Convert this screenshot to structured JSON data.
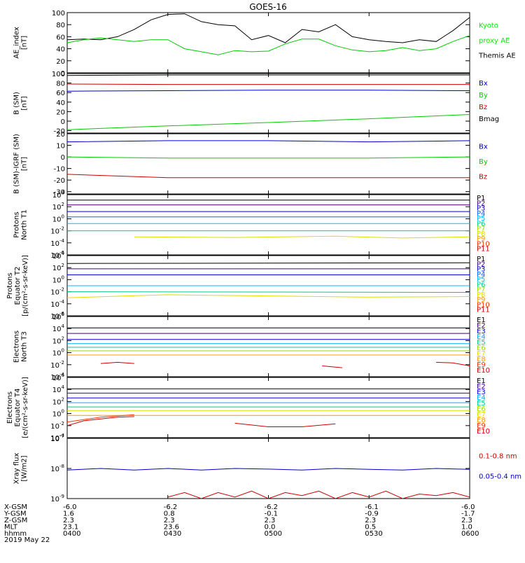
{
  "title": "GOES-16",
  "date": "2019 May 22",
  "chart_data": [
    {
      "type": "line",
      "panel": "ae",
      "ylabel": [
        "AE_index",
        "[nT]"
      ],
      "yticks": [
        "0",
        "20",
        "40",
        "60",
        "80",
        "100"
      ],
      "yrange": [
        0,
        100
      ],
      "legend": [
        {
          "text": "Kyoto",
          "color": "#00ee00"
        },
        {
          "text": "proxy AE",
          "color": "#00ee00"
        },
        {
          "text": "Themis AE",
          "color": "#000000"
        }
      ],
      "series": [
        {
          "color": "#000000",
          "x": [
            0,
            5,
            10,
            15,
            20,
            25,
            30,
            35,
            40,
            45,
            50,
            55,
            60,
            65,
            70,
            75,
            80,
            85,
            90,
            95,
            100,
            105,
            110,
            115,
            120
          ],
          "values": [
            55,
            56,
            55,
            60,
            72,
            88,
            97,
            98,
            85,
            80,
            78,
            55,
            62,
            50,
            72,
            68,
            80,
            60,
            55,
            52,
            50,
            55,
            52,
            70,
            92
          ]
        },
        {
          "color": "#00cc00",
          "x": [
            0,
            5,
            10,
            15,
            20,
            25,
            30,
            35,
            40,
            45,
            50,
            55,
            60,
            65,
            70,
            75,
            80,
            85,
            90,
            95,
            100,
            105,
            110,
            115,
            120
          ],
          "values": [
            50,
            55,
            58,
            55,
            52,
            55,
            55,
            40,
            35,
            30,
            37,
            35,
            36,
            48,
            56,
            56,
            45,
            38,
            35,
            37,
            42,
            37,
            40,
            52,
            62
          ]
        }
      ]
    },
    {
      "type": "line",
      "panel": "bsm",
      "ylabel": [
        "B (SM)",
        "[nT]"
      ],
      "yticks": [
        "-20",
        "0",
        "20",
        "40",
        "60",
        "80",
        "100"
      ],
      "yrange": [
        -25,
        100
      ],
      "legend": [
        {
          "text": "Bx",
          "color": "#0000cc"
        },
        {
          "text": "By",
          "color": "#00cc00"
        },
        {
          "text": "Bz",
          "color": "#cc0000"
        },
        {
          "text": "Bmag",
          "color": "#000000"
        }
      ],
      "series": [
        {
          "color": "#000000",
          "x": [
            0,
            30,
            60,
            90,
            120
          ],
          "values": [
            96,
            97,
            97,
            97,
            97
          ]
        },
        {
          "color": "#cc0000",
          "x": [
            0,
            30,
            60,
            90,
            120
          ],
          "values": [
            78,
            77,
            77,
            77,
            77
          ]
        },
        {
          "color": "#0000cc",
          "x": [
            0,
            30,
            60,
            90,
            120
          ],
          "values": [
            63,
            64,
            65,
            65,
            64
          ]
        },
        {
          "color": "#00cc00",
          "x": [
            0,
            30,
            60,
            90,
            120
          ],
          "values": [
            -18,
            -10,
            -3,
            5,
            14
          ]
        }
      ]
    },
    {
      "type": "line",
      "panel": "bsm-igrf",
      "ylabel": [
        "B (SM)-IGRF (SM)",
        "[nT]"
      ],
      "yticks": [
        "-30",
        "-20",
        "-10",
        "0",
        "10",
        "20"
      ],
      "yrange": [
        -32,
        20
      ],
      "legend": [
        {
          "text": "Bx",
          "color": "#0000cc"
        },
        {
          "text": "By",
          "color": "#00cc00"
        },
        {
          "text": "Bz",
          "color": "#cc0000"
        }
      ],
      "series": [
        {
          "color": "#0000cc",
          "x": [
            0,
            30,
            60,
            90,
            120
          ],
          "values": [
            13,
            14,
            14,
            13,
            14
          ]
        },
        {
          "color": "#00cc00",
          "x": [
            0,
            30,
            60,
            90,
            120
          ],
          "values": [
            0,
            -1,
            -1,
            -1,
            0
          ]
        },
        {
          "color": "#cc0000",
          "x": [
            0,
            30,
            60,
            90,
            120
          ],
          "values": [
            -15,
            -18,
            -18,
            -18,
            -18
          ]
        }
      ]
    },
    {
      "type": "line",
      "panel": "protons-t1",
      "scale": "log",
      "ylabel": [
        "Protons",
        "North T1"
      ],
      "ytickexp": [
        "-6",
        "-4",
        "-2",
        "0",
        "2",
        "4"
      ],
      "yrange": [
        -6,
        4
      ],
      "legend": [
        {
          "text": "P1",
          "color": "#000000"
        },
        {
          "text": "P2",
          "color": "#440088"
        },
        {
          "text": "P3",
          "color": "#0000dd"
        },
        {
          "text": "P4",
          "color": "#0066ff"
        },
        {
          "text": "P5",
          "color": "#00bbff"
        },
        {
          "text": "P6",
          "color": "#00cc88"
        },
        {
          "text": "P7",
          "color": "#99dd00"
        },
        {
          "text": "P8",
          "color": "#dddd00"
        },
        {
          "text": "P9",
          "color": "#ff9900"
        },
        {
          "text": "P10",
          "color": "#ee3300"
        },
        {
          "text": "P11",
          "color": "#cc0000"
        }
      ],
      "series": [
        {
          "color": "#000000",
          "x": [
            0,
            120
          ],
          "values": [
            3.1,
            3.1
          ]
        },
        {
          "color": "#440088",
          "x": [
            0,
            120
          ],
          "values": [
            2.3,
            2.3
          ]
        },
        {
          "color": "#0000dd",
          "x": [
            0,
            120
          ],
          "values": [
            1.2,
            1.2
          ]
        },
        {
          "color": "#0066ff",
          "x": [
            0,
            120
          ],
          "values": [
            0.3,
            0.3
          ]
        },
        {
          "color": "#00bbff",
          "x": [
            0,
            120
          ],
          "values": [
            -0.8,
            -0.8
          ]
        },
        {
          "color": "#00cc88",
          "x": [
            0,
            120
          ],
          "values": [
            -2.0,
            -2.0
          ]
        },
        {
          "color": "#dddd00",
          "x": [
            20,
            50,
            80,
            100,
            120
          ],
          "values": [
            -3.0,
            -3.1,
            -2.9,
            -3.2,
            -3.0
          ]
        }
      ]
    },
    {
      "type": "line",
      "panel": "protons-t2",
      "scale": "log",
      "ylabel": [
        "Protons",
        "Equator T2",
        "[p/(cm²-s-sr-keV)]"
      ],
      "ytickexp": [
        "-6",
        "-4",
        "-2",
        "0",
        "2",
        "4"
      ],
      "yrange": [
        -6,
        4
      ],
      "legend": [
        {
          "text": "P1",
          "color": "#000000"
        },
        {
          "text": "P2",
          "color": "#440088"
        },
        {
          "text": "P3",
          "color": "#0000dd"
        },
        {
          "text": "P4",
          "color": "#0066ff"
        },
        {
          "text": "P5",
          "color": "#00bbff"
        },
        {
          "text": "P6",
          "color": "#00cc88"
        },
        {
          "text": "P7",
          "color": "#99dd00"
        },
        {
          "text": "P8",
          "color": "#dddd00"
        },
        {
          "text": "P9",
          "color": "#ff9900"
        },
        {
          "text": "P10",
          "color": "#ee3300"
        },
        {
          "text": "P11",
          "color": "#cc0000"
        }
      ],
      "series": [
        {
          "color": "#000000",
          "x": [
            0,
            120
          ],
          "values": [
            2.7,
            2.8
          ]
        },
        {
          "color": "#440088",
          "x": [
            0,
            120
          ],
          "values": [
            1.8,
            1.8
          ]
        },
        {
          "color": "#0000dd",
          "x": [
            0,
            120
          ],
          "values": [
            0.8,
            0.8
          ]
        },
        {
          "color": "#00bbff",
          "x": [
            0,
            120
          ],
          "values": [
            -1.0,
            -1.0
          ]
        },
        {
          "color": "#00cc88",
          "x": [
            0,
            120
          ],
          "values": [
            -2.0,
            -2.1
          ]
        },
        {
          "color": "#dddd00",
          "x": [
            0,
            30,
            60,
            90,
            120
          ],
          "values": [
            -3.0,
            -2.5,
            -2.7,
            -2.9,
            -2.8
          ]
        }
      ]
    },
    {
      "type": "line",
      "panel": "electrons-t3",
      "scale": "log",
      "ylabel": [
        "Electrons",
        "North T3"
      ],
      "ytickexp": [
        "-4",
        "-2",
        "0",
        "2",
        "4",
        "6"
      ],
      "yrange": [
        -4,
        6
      ],
      "legend": [
        {
          "text": "E1",
          "color": "#000000"
        },
        {
          "text": "E2",
          "color": "#440088"
        },
        {
          "text": "E3",
          "color": "#0000dd"
        },
        {
          "text": "E4",
          "color": "#00aaff"
        },
        {
          "text": "E5",
          "color": "#00cc88"
        },
        {
          "text": "E6",
          "color": "#99dd00"
        },
        {
          "text": "E7",
          "color": "#dddd00"
        },
        {
          "text": "E8",
          "color": "#ff9900"
        },
        {
          "text": "E9",
          "color": "#ee3300"
        },
        {
          "text": "E10",
          "color": "#cc0000"
        }
      ],
      "series": [
        {
          "color": "#000000",
          "x": [
            0,
            120
          ],
          "values": [
            4.1,
            4.1
          ]
        },
        {
          "color": "#440088",
          "x": [
            0,
            120
          ],
          "values": [
            3.2,
            3.2
          ]
        },
        {
          "color": "#0000dd",
          "x": [
            0,
            120
          ],
          "values": [
            2.2,
            2.2
          ]
        },
        {
          "color": "#00aaff",
          "x": [
            0,
            120
          ],
          "values": [
            1.5,
            1.5
          ]
        },
        {
          "color": "#00cc88",
          "x": [
            0,
            120
          ],
          "values": [
            0.9,
            0.9
          ]
        },
        {
          "color": "#99dd00",
          "x": [
            0,
            120
          ],
          "values": [
            0.3,
            0.3
          ]
        },
        {
          "color": "#ff9900",
          "x": [
            0,
            120
          ],
          "values": [
            -0.4,
            -0.4
          ]
        },
        {
          "color": "#cc0000",
          "x": [
            10,
            15,
            20
          ],
          "values": [
            -1.8,
            -1.6,
            -1.8
          ]
        },
        {
          "color": "#cc0000",
          "x": [
            76,
            82
          ],
          "values": [
            -2.2,
            -2.5
          ]
        },
        {
          "color": "#cc0000",
          "x": [
            110,
            115,
            120
          ],
          "values": [
            -1.6,
            -1.7,
            -2.2
          ]
        }
      ]
    },
    {
      "type": "line",
      "panel": "electrons-t4",
      "scale": "log",
      "ylabel": [
        "Electrons",
        "Equator T4",
        "[e/(cm²-s-sr-keV)]"
      ],
      "ytickexp": [
        "-4",
        "-2",
        "0",
        "2",
        "4",
        "6"
      ],
      "yrange": [
        -4,
        6
      ],
      "legend": [
        {
          "text": "E1",
          "color": "#000000"
        },
        {
          "text": "E2",
          "color": "#440088"
        },
        {
          "text": "E3",
          "color": "#0000dd"
        },
        {
          "text": "E4",
          "color": "#00aaff"
        },
        {
          "text": "E5",
          "color": "#00cc88"
        },
        {
          "text": "E6",
          "color": "#99dd00"
        },
        {
          "text": "E7",
          "color": "#dddd00"
        },
        {
          "text": "E8",
          "color": "#ff9900"
        },
        {
          "text": "E9",
          "color": "#ee3300"
        },
        {
          "text": "E10",
          "color": "#cc0000"
        }
      ],
      "series": [
        {
          "color": "#000000",
          "x": [
            0,
            120
          ],
          "values": [
            4.1,
            4.1
          ]
        },
        {
          "color": "#440088",
          "x": [
            0,
            120
          ],
          "values": [
            3.4,
            3.4
          ]
        },
        {
          "color": "#0000dd",
          "x": [
            0,
            120
          ],
          "values": [
            2.6,
            2.6
          ]
        },
        {
          "color": "#00aaff",
          "x": [
            0,
            120
          ],
          "values": [
            1.8,
            1.8
          ]
        },
        {
          "color": "#00cc88",
          "x": [
            0,
            120
          ],
          "values": [
            1.1,
            1.1
          ]
        },
        {
          "color": "#dddd00",
          "x": [
            0,
            120
          ],
          "values": [
            0.5,
            0.5
          ]
        },
        {
          "color": "#ff9900",
          "x": [
            0,
            120
          ],
          "values": [
            -0.3,
            -0.3
          ]
        },
        {
          "color": "#cc0000",
          "x": [
            0,
            5,
            10,
            15,
            20
          ],
          "values": [
            -2.0,
            -1.2,
            -0.9,
            -0.6,
            -0.5
          ]
        },
        {
          "color": "#ee3300",
          "x": [
            0,
            10,
            20
          ],
          "values": [
            -1.4,
            -0.6,
            -0.2
          ]
        },
        {
          "color": "#cc0000",
          "x": [
            50,
            60,
            70,
            80
          ],
          "values": [
            -1.6,
            -2.2,
            -2.2,
            -1.7
          ]
        }
      ]
    },
    {
      "type": "line",
      "panel": "xray",
      "scale": "log",
      "ylabel": [
        "Xray flux",
        "[W/m2]"
      ],
      "ytickexp": [
        "-9",
        "-8",
        "-7"
      ],
      "yrange": [
        -9,
        -7
      ],
      "legend": [
        {
          "text": "0.1-0.8 nm",
          "color": "#cc0000"
        },
        {
          "text": "0.05-0.4 nm",
          "color": "#0000cc"
        }
      ],
      "series": [
        {
          "color": "#0000cc",
          "x": [
            0,
            10,
            20,
            30,
            40,
            50,
            60,
            70,
            80,
            90,
            100,
            110,
            120
          ],
          "values": [
            -8.05,
            -8.0,
            -8.05,
            -8.0,
            -8.05,
            -8.0,
            -8.02,
            -8.05,
            -8.0,
            -8.03,
            -8.05,
            -8.0,
            -8.03
          ]
        },
        {
          "color": "#cc0000",
          "x": [
            30,
            35,
            40,
            45,
            50,
            55,
            60,
            65,
            70,
            75,
            80,
            85,
            90,
            95,
            100,
            105,
            110,
            115,
            120
          ],
          "values": [
            -8.95,
            -8.8,
            -9.0,
            -8.8,
            -8.95,
            -8.75,
            -9.0,
            -8.8,
            -8.9,
            -8.75,
            -9.0,
            -8.8,
            -8.95,
            -8.75,
            -9.0,
            -8.85,
            -8.9,
            -8.8,
            -8.95
          ]
        }
      ]
    }
  ],
  "ephemeris": {
    "labels": [
      "X-GSM",
      "Y-GSM",
      "Z-GSM",
      "MLT",
      "hhmm"
    ],
    "columns": [
      {
        "values": [
          "-6.0",
          "1.6",
          "2.3",
          "23.1",
          "0400"
        ]
      },
      {
        "values": [
          "-6.2",
          "0.8",
          "2.3",
          "23.6",
          "0430"
        ]
      },
      {
        "values": [
          "-6.2",
          "-0.1",
          "2.3",
          "0.0",
          "0500"
        ]
      },
      {
        "values": [
          "-6.1",
          "-0.9",
          "2.3",
          "0.5",
          "0530"
        ]
      },
      {
        "values": [
          "-6.0",
          "-1.7",
          "2.3",
          "1.0",
          "0600"
        ]
      }
    ]
  }
}
